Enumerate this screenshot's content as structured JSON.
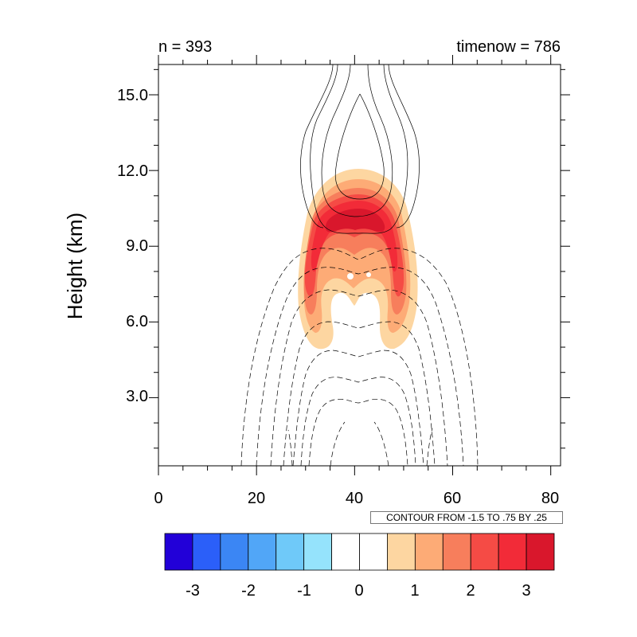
{
  "chart_data": {
    "type": "contour",
    "title_left": "n = 393",
    "title_right": "timenow = 786",
    "ylabel": "Height (km)",
    "xlabel": "",
    "xlim": [
      0,
      82
    ],
    "ylim": [
      0.3,
      16.2
    ],
    "x_ticks": [
      "0",
      "20",
      "40",
      "60",
      "80"
    ],
    "x_tick_values": [
      0,
      20,
      40,
      60,
      80
    ],
    "y_ticks": [
      "3.0",
      "6.0",
      "9.0",
      "12.0",
      "15.0"
    ],
    "y_tick_values": [
      3,
      6,
      9,
      12,
      15
    ],
    "contour_info": "CONTOUR FROM -1.5 TO .75 BY .25",
    "colorbar": {
      "labels": [
        "-3",
        "-2",
        "-1",
        "0",
        "1",
        "2",
        "3"
      ],
      "label_values": [
        -3,
        -2,
        -1,
        0,
        1,
        2,
        3
      ],
      "levels": [
        -3.5,
        -3,
        -2.5,
        -2,
        -1.5,
        -1,
        -0.5,
        0,
        0.5,
        1,
        1.5,
        2,
        2.5,
        3,
        3.5
      ],
      "colors": [
        "#2200d8",
        "#2b5ff9",
        "#3b86f4",
        "#51a6f7",
        "#6fc9f9",
        "#95e3fc",
        "#ffffff",
        "#ffffff",
        "#fdd6a1",
        "#fdab76",
        "#f77e5c",
        "#f54b45",
        "#f22b38",
        "#d9172c"
      ]
    },
    "filled_field": {
      "center_x": 41,
      "positive_region_y": [
        4.8,
        12.0
      ],
      "peak_y": 10.5,
      "peak_value": 3.2
    },
    "contour_lines": {
      "positive": "solid",
      "negative": "dashed"
    }
  }
}
